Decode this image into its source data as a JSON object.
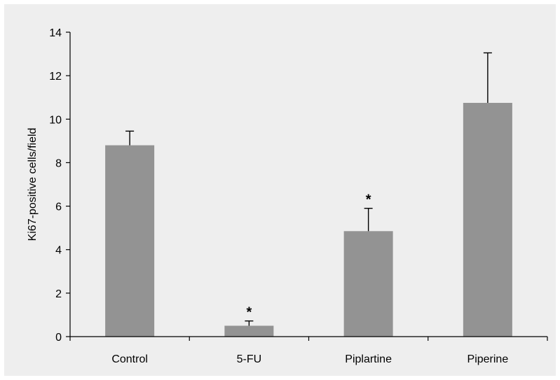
{
  "colors": {
    "panel_background": "#eeeeee",
    "bar_fill": "#939393",
    "axis": "#000000"
  },
  "chart_data": {
    "type": "bar",
    "ylabel": "Ki67-positive cells/field",
    "xlabel": "",
    "ylim": [
      0,
      14
    ],
    "yticks": [
      0,
      2,
      4,
      6,
      8,
      10,
      12,
      14
    ],
    "categories": [
      "Control",
      "5-FU",
      "Piplartine",
      "Piperine"
    ],
    "values": [
      8.8,
      0.5,
      4.85,
      10.75
    ],
    "error_upper": [
      0.65,
      0.22,
      1.05,
      2.3
    ],
    "significance": [
      "",
      "*",
      "*",
      ""
    ],
    "grid": false,
    "legend": "none"
  }
}
